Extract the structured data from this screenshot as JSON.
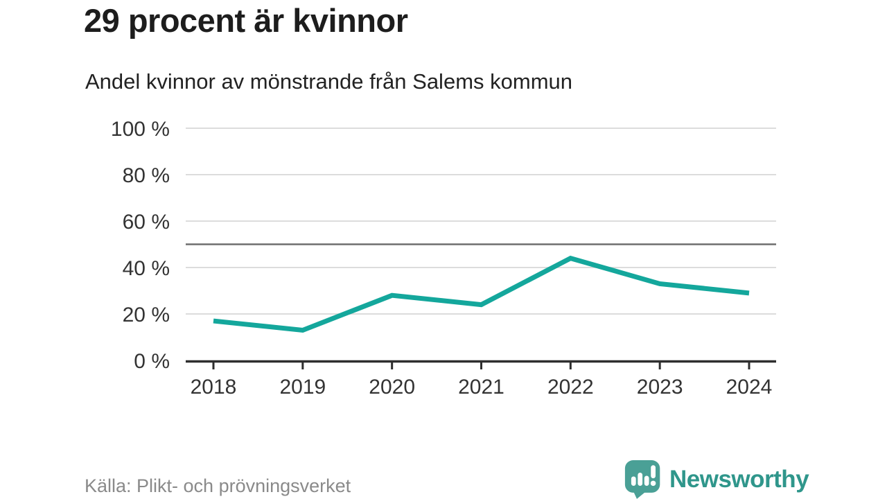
{
  "header": {
    "title": "29 procent är kvinnor",
    "subtitle": "Andel kvinnor av mönstrande från Salems kommun"
  },
  "chart_data": {
    "type": "line",
    "title": "29 procent är kvinnor",
    "subtitle": "Andel kvinnor av mönstrande från Salems kommun",
    "x": [
      2018,
      2019,
      2020,
      2021,
      2022,
      2023,
      2024
    ],
    "xtick_labels": [
      "2018",
      "2019",
      "2020",
      "2021",
      "2022",
      "2023",
      "2024"
    ],
    "series": [
      {
        "name": "Andel kvinnor av mönstrande",
        "values": [
          17,
          13,
          28,
          24,
          44,
          33,
          29
        ]
      }
    ],
    "xlabel": "",
    "ylabel": "",
    "ylim": [
      0,
      100
    ],
    "yticks": [
      0,
      20,
      40,
      60,
      80,
      100
    ],
    "ytick_labels": [
      "0 %",
      "20 %",
      "40 %",
      "60 %",
      "80 %",
      "100 %"
    ],
    "reference_line": 50,
    "grid": "horizontal",
    "legend": "none"
  },
  "footer": {
    "source": "Källa: Plikt- och prövningsverket",
    "brand": "Newsworthy",
    "logo_icon": "newsworthy-speech-bubble-bar-chart-icon"
  },
  "colors": {
    "title": "#1d1d1d",
    "subtitle": "#222222",
    "axis_label": "#333333",
    "gridline": "#dcdcdc",
    "reference_line": "#6e6e6e",
    "axis_line": "#2e2e2e",
    "line": "#14a79c",
    "source_text": "#8a8a8a",
    "brand_teal": "#2f968b",
    "logo_fill": "#4aa096"
  }
}
